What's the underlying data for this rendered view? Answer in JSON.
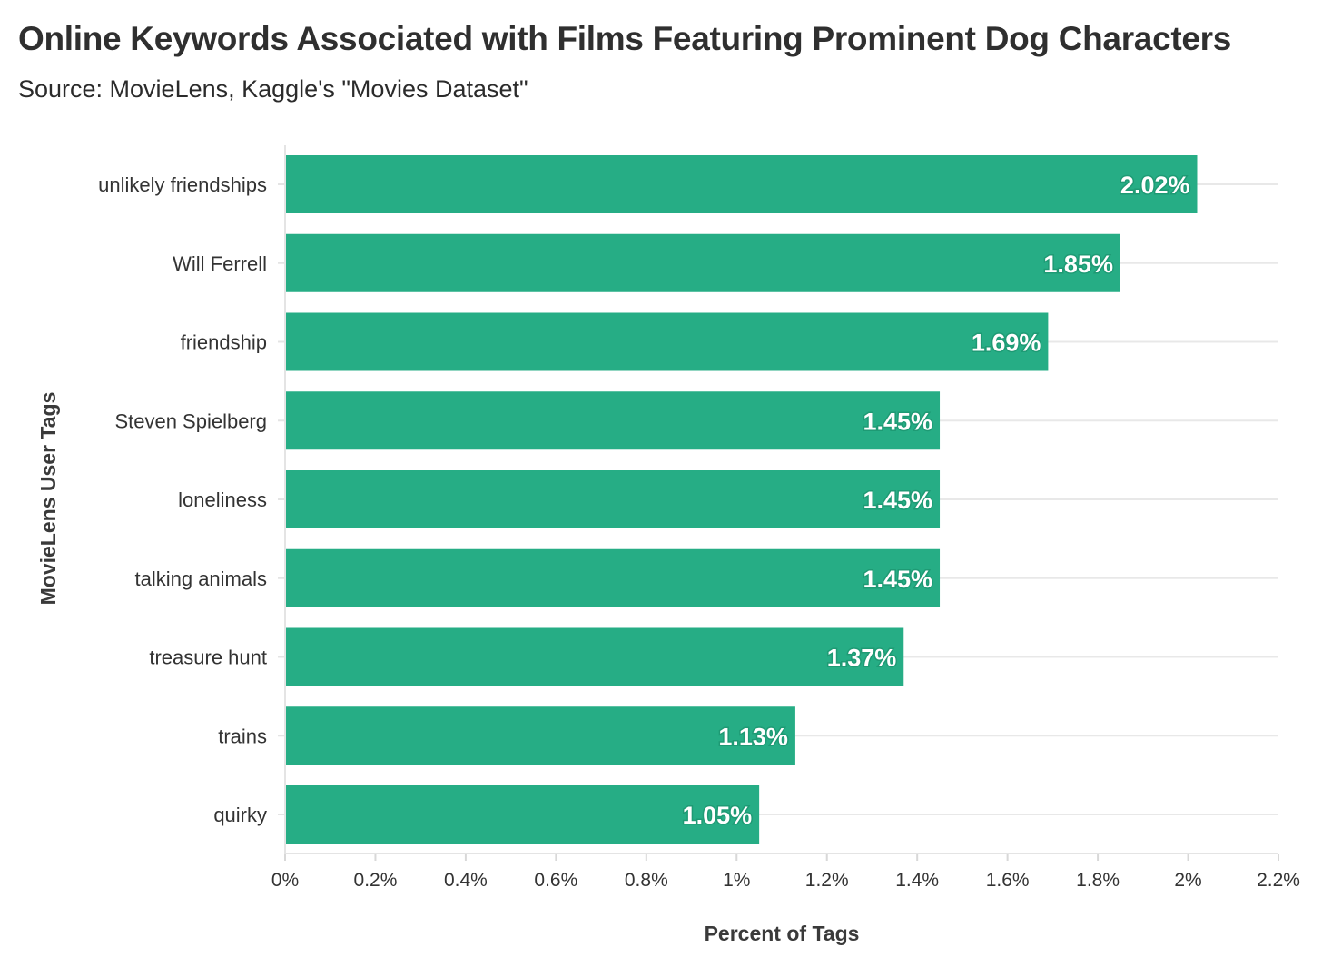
{
  "chart_data": {
    "type": "bar",
    "orientation": "horizontal",
    "title": "Online Keywords Associated with Films Featuring Prominent Dog Characters",
    "subtitle": "Source: MovieLens, Kaggle's \"Movies Dataset\"",
    "xlabel": "Percent of Tags",
    "ylabel": "MovieLens User Tags",
    "categories": [
      "unlikely friendships",
      "Will Ferrell",
      "friendship",
      "Steven Spielberg",
      "loneliness",
      "talking animals",
      "treasure hunt",
      "trains",
      "quirky"
    ],
    "values": [
      2.02,
      1.85,
      1.69,
      1.45,
      1.45,
      1.45,
      1.37,
      1.13,
      1.05
    ],
    "value_labels": [
      "2.02%",
      "1.85%",
      "1.69%",
      "1.45%",
      "1.45%",
      "1.45%",
      "1.37%",
      "1.13%",
      "1.05%"
    ],
    "xlim": [
      0,
      2.2
    ],
    "xticks": [
      0,
      0.2,
      0.4,
      0.6,
      0.8,
      1,
      1.2,
      1.4,
      1.6,
      1.8,
      2,
      2.2
    ],
    "xtick_labels": [
      "0%",
      "0.2%",
      "0.4%",
      "0.6%",
      "0.8%",
      "1%",
      "1.2%",
      "1.4%",
      "1.6%",
      "1.8%",
      "2%",
      "2.2%"
    ],
    "grid": true,
    "legend": "none",
    "bar_color": "#26ad85"
  }
}
